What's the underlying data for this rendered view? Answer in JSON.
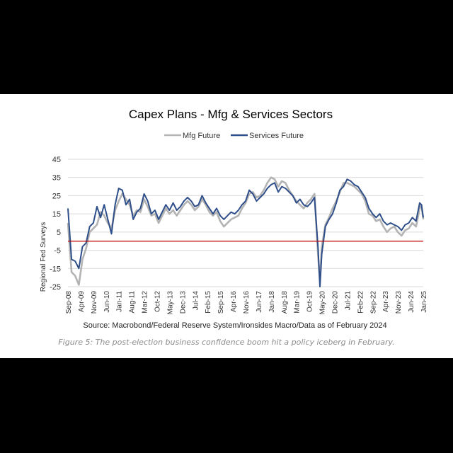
{
  "figure_caption": "Figure 5: The post-election business confidence boom hit a policy iceberg in February.",
  "chart_data": {
    "type": "line",
    "title": "Capex Plans - Mfg & Services Sectors",
    "ylabel": "Regional Fed Surveys",
    "xlabel": "",
    "source": "Source: Macrobond/Federal Reserve System/Ironsides Macro/Data as of February 2024",
    "ylim": [
      -25,
      45
    ],
    "yticks": [
      -25,
      -15,
      -5,
      5,
      15,
      25,
      35,
      45
    ],
    "xlim": [
      "2008-09",
      "2025-01"
    ],
    "xticks": [
      "Sep-08",
      "Apr-09",
      "Nov-09",
      "Jun-10",
      "Jan-11",
      "Aug-11",
      "Mar-12",
      "Oct-12",
      "May-13",
      "Dec-13",
      "Jul-14",
      "Feb-15",
      "Sep-15",
      "Apr-16",
      "Nov-16",
      "Jun-17",
      "Jan-18",
      "Aug-18",
      "Mar-19",
      "Oct-19",
      "May-20",
      "Dec-20",
      "Jul-21",
      "Feb-22",
      "Sep-22",
      "Apr-23",
      "Nov-23",
      "Jun-24",
      "Jan-25"
    ],
    "grid": "horizontal",
    "legend": "top-center",
    "reference_line": {
      "y": 0,
      "color": "#c00000"
    },
    "series": [
      {
        "name": "Mfg Future",
        "color": "#b3b3b3",
        "points": [
          [
            "2008-09",
            10
          ],
          [
            "2008-11",
            -17
          ],
          [
            "2009-01",
            -19
          ],
          [
            "2009-03",
            -24
          ],
          [
            "2009-05",
            -10
          ],
          [
            "2009-07",
            -4
          ],
          [
            "2009-09",
            5
          ],
          [
            "2009-11",
            7
          ],
          [
            "2010-01",
            9
          ],
          [
            "2010-03",
            16
          ],
          [
            "2010-05",
            14
          ],
          [
            "2010-07",
            10
          ],
          [
            "2010-09",
            7
          ],
          [
            "2010-11",
            17
          ],
          [
            "2011-01",
            22
          ],
          [
            "2011-03",
            26
          ],
          [
            "2011-05",
            23
          ],
          [
            "2011-07",
            20
          ],
          [
            "2011-09",
            14
          ],
          [
            "2011-11",
            17
          ],
          [
            "2012-01",
            16
          ],
          [
            "2012-03",
            23
          ],
          [
            "2012-05",
            19
          ],
          [
            "2012-07",
            14
          ],
          [
            "2012-09",
            15
          ],
          [
            "2012-11",
            10
          ],
          [
            "2013-01",
            14
          ],
          [
            "2013-03",
            18
          ],
          [
            "2013-05",
            15
          ],
          [
            "2013-07",
            17
          ],
          [
            "2013-09",
            14
          ],
          [
            "2013-11",
            17
          ],
          [
            "2014-01",
            20
          ],
          [
            "2014-03",
            22
          ],
          [
            "2014-05",
            20
          ],
          [
            "2014-07",
            17
          ],
          [
            "2014-09",
            19
          ],
          [
            "2014-11",
            23
          ],
          [
            "2015-01",
            20
          ],
          [
            "2015-03",
            16
          ],
          [
            "2015-05",
            14
          ],
          [
            "2015-07",
            16
          ],
          [
            "2015-09",
            11
          ],
          [
            "2015-11",
            8
          ],
          [
            "2016-01",
            10
          ],
          [
            "2016-03",
            12
          ],
          [
            "2016-05",
            13
          ],
          [
            "2016-07",
            14
          ],
          [
            "2016-09",
            18
          ],
          [
            "2016-11",
            21
          ],
          [
            "2017-01",
            26
          ],
          [
            "2017-03",
            27
          ],
          [
            "2017-05",
            24
          ],
          [
            "2017-07",
            25
          ],
          [
            "2017-09",
            28
          ],
          [
            "2017-11",
            32
          ],
          [
            "2018-01",
            35
          ],
          [
            "2018-03",
            34
          ],
          [
            "2018-05",
            30
          ],
          [
            "2018-07",
            33
          ],
          [
            "2018-09",
            32
          ],
          [
            "2018-11",
            28
          ],
          [
            "2019-01",
            25
          ],
          [
            "2019-03",
            22
          ],
          [
            "2019-05",
            20
          ],
          [
            "2019-07",
            18
          ],
          [
            "2019-09",
            21
          ],
          [
            "2019-11",
            23
          ],
          [
            "2020-01",
            26
          ],
          [
            "2020-03",
            -8
          ],
          [
            "2020-04",
            -22
          ],
          [
            "2020-05",
            -3
          ],
          [
            "2020-07",
            9
          ],
          [
            "2020-09",
            13
          ],
          [
            "2020-11",
            18
          ],
          [
            "2021-01",
            22
          ],
          [
            "2021-03",
            27
          ],
          [
            "2021-05",
            32
          ],
          [
            "2021-07",
            32
          ],
          [
            "2021-09",
            31
          ],
          [
            "2021-11",
            30
          ],
          [
            "2022-01",
            28
          ],
          [
            "2022-03",
            26
          ],
          [
            "2022-05",
            22
          ],
          [
            "2022-07",
            15
          ],
          [
            "2022-09",
            14
          ],
          [
            "2022-11",
            11
          ],
          [
            "2023-01",
            12
          ],
          [
            "2023-03",
            8
          ],
          [
            "2023-05",
            5
          ],
          [
            "2023-07",
            7
          ],
          [
            "2023-09",
            8
          ],
          [
            "2023-11",
            5
          ],
          [
            "2024-01",
            3
          ],
          [
            "2024-03",
            6
          ],
          [
            "2024-05",
            7
          ],
          [
            "2024-07",
            10
          ],
          [
            "2024-09",
            8
          ],
          [
            "2024-11",
            18
          ],
          [
            "2024-12",
            20
          ],
          [
            "2025-01",
            12
          ]
        ]
      },
      {
        "name": "Services Future",
        "color": "#2f4f8a",
        "points": [
          [
            "2008-09",
            18
          ],
          [
            "2008-11",
            -10
          ],
          [
            "2009-01",
            -11
          ],
          [
            "2009-03",
            -15
          ],
          [
            "2009-05",
            -3
          ],
          [
            "2009-07",
            -1
          ],
          [
            "2009-09",
            8
          ],
          [
            "2009-11",
            10
          ],
          [
            "2010-01",
            19
          ],
          [
            "2010-03",
            13
          ],
          [
            "2010-05",
            20
          ],
          [
            "2010-07",
            12
          ],
          [
            "2010-09",
            4
          ],
          [
            "2010-11",
            20
          ],
          [
            "2011-01",
            29
          ],
          [
            "2011-03",
            28
          ],
          [
            "2011-05",
            20
          ],
          [
            "2011-07",
            23
          ],
          [
            "2011-09",
            12
          ],
          [
            "2011-11",
            16
          ],
          [
            "2012-01",
            18
          ],
          [
            "2012-03",
            26
          ],
          [
            "2012-05",
            22
          ],
          [
            "2012-07",
            15
          ],
          [
            "2012-09",
            17
          ],
          [
            "2012-11",
            12
          ],
          [
            "2013-01",
            16
          ],
          [
            "2013-03",
            20
          ],
          [
            "2013-05",
            17
          ],
          [
            "2013-07",
            21
          ],
          [
            "2013-09",
            17
          ],
          [
            "2013-11",
            19
          ],
          [
            "2014-01",
            22
          ],
          [
            "2014-03",
            24
          ],
          [
            "2014-05",
            22
          ],
          [
            "2014-07",
            19
          ],
          [
            "2014-09",
            20
          ],
          [
            "2014-11",
            25
          ],
          [
            "2015-01",
            21
          ],
          [
            "2015-03",
            18
          ],
          [
            "2015-05",
            15
          ],
          [
            "2015-07",
            18
          ],
          [
            "2015-09",
            14
          ],
          [
            "2015-11",
            12
          ],
          [
            "2016-01",
            14
          ],
          [
            "2016-03",
            16
          ],
          [
            "2016-05",
            15
          ],
          [
            "2016-07",
            17
          ],
          [
            "2016-09",
            20
          ],
          [
            "2016-11",
            22
          ],
          [
            "2017-01",
            28
          ],
          [
            "2017-03",
            26
          ],
          [
            "2017-05",
            22
          ],
          [
            "2017-07",
            24
          ],
          [
            "2017-09",
            26
          ],
          [
            "2017-11",
            29
          ],
          [
            "2018-01",
            31
          ],
          [
            "2018-03",
            32
          ],
          [
            "2018-05",
            27
          ],
          [
            "2018-07",
            30
          ],
          [
            "2018-09",
            29
          ],
          [
            "2018-11",
            27
          ],
          [
            "2019-01",
            25
          ],
          [
            "2019-03",
            21
          ],
          [
            "2019-05",
            23
          ],
          [
            "2019-07",
            20
          ],
          [
            "2019-09",
            19
          ],
          [
            "2019-11",
            21
          ],
          [
            "2020-01",
            24
          ],
          [
            "2020-03",
            -4
          ],
          [
            "2020-04",
            -25
          ],
          [
            "2020-05",
            -7
          ],
          [
            "2020-07",
            8
          ],
          [
            "2020-09",
            12
          ],
          [
            "2020-11",
            15
          ],
          [
            "2021-01",
            21
          ],
          [
            "2021-03",
            28
          ],
          [
            "2021-05",
            30
          ],
          [
            "2021-07",
            34
          ],
          [
            "2021-09",
            33
          ],
          [
            "2021-11",
            31
          ],
          [
            "2022-01",
            30
          ],
          [
            "2022-03",
            27
          ],
          [
            "2022-05",
            24
          ],
          [
            "2022-07",
            18
          ],
          [
            "2022-09",
            15
          ],
          [
            "2022-11",
            13
          ],
          [
            "2023-01",
            15
          ],
          [
            "2023-03",
            11
          ],
          [
            "2023-05",
            9
          ],
          [
            "2023-07",
            10
          ],
          [
            "2023-09",
            9
          ],
          [
            "2023-11",
            8
          ],
          [
            "2024-01",
            6
          ],
          [
            "2024-03",
            9
          ],
          [
            "2024-05",
            10
          ],
          [
            "2024-07",
            13
          ],
          [
            "2024-09",
            11
          ],
          [
            "2024-11",
            21
          ],
          [
            "2024-12",
            20
          ],
          [
            "2025-01",
            13
          ]
        ]
      }
    ]
  }
}
